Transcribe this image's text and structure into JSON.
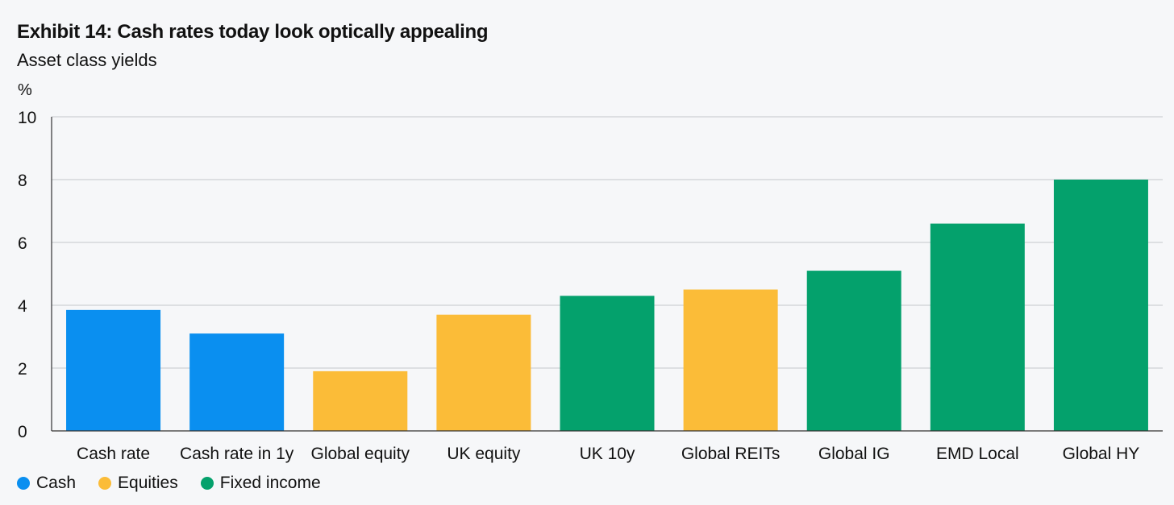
{
  "chart_data": {
    "type": "bar",
    "title": "Exhibit 14: Cash rates today look optically appealing",
    "subtitle": "Asset class yields",
    "ylabel": "%",
    "xlabel": "",
    "ylim": [
      0,
      10
    ],
    "yticks": [
      0,
      2,
      4,
      6,
      8,
      10
    ],
    "grid": true,
    "legend_position": "bottom-left",
    "categories": [
      "Cash rate",
      "Cash rate in 1y",
      "Global equity",
      "UK equity",
      "UK 10y",
      "Global REITs",
      "Global IG",
      "EMD Local",
      "Global HY"
    ],
    "values": [
      3.85,
      3.1,
      1.9,
      3.7,
      4.3,
      4.5,
      5.1,
      6.6,
      8.0
    ],
    "groups": [
      "Cash",
      "Cash",
      "Equities",
      "Equities",
      "Fixed income",
      "Equities",
      "Fixed income",
      "Fixed income",
      "Fixed income"
    ],
    "legend": [
      {
        "name": "Cash",
        "color": "#0a8ff0"
      },
      {
        "name": "Equities",
        "color": "#fbbc38"
      },
      {
        "name": "Fixed income",
        "color": "#04a16c"
      }
    ]
  }
}
